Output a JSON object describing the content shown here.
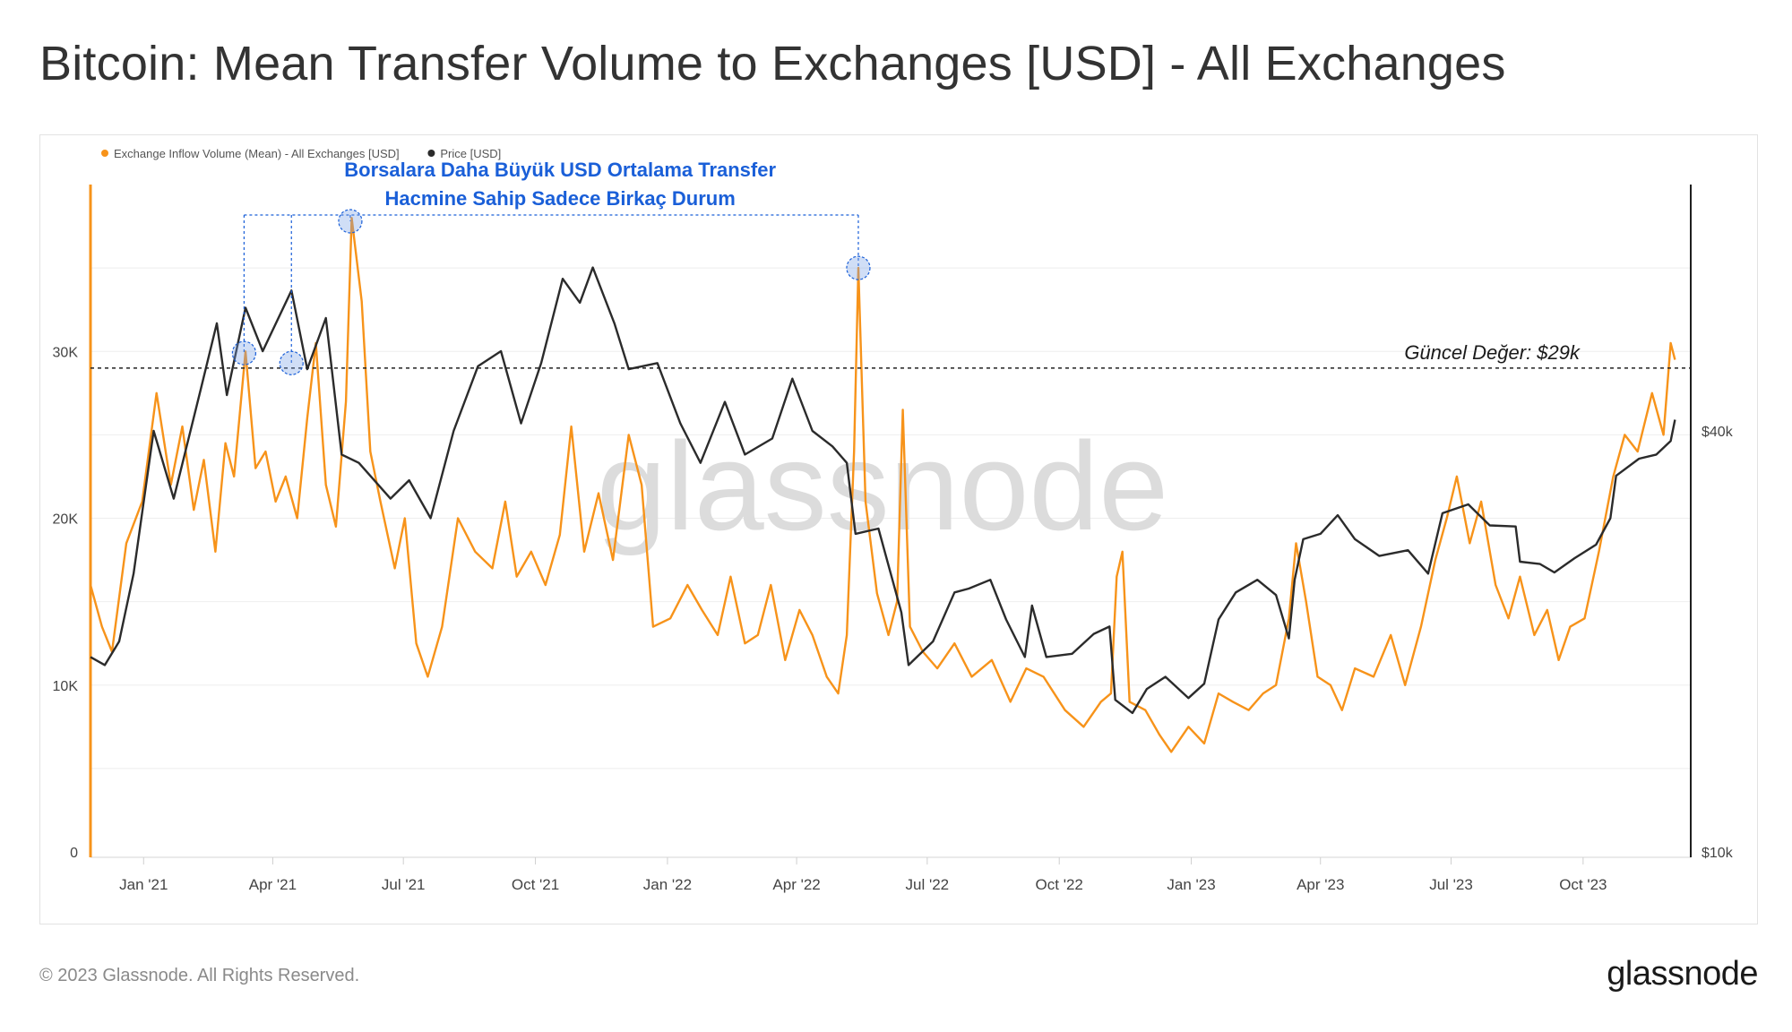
{
  "title": "Bitcoin: Mean Transfer Volume to Exchanges [USD] - All Exchanges",
  "footer": {
    "copyright": "© 2023 Glassnode. All Rights Reserved.",
    "logo": "glassnode"
  },
  "watermark": "glassnode",
  "colors": {
    "inflow": "#f7931a",
    "price": "#2b2b2b",
    "annotation": "#1a5fd8",
    "watermark": "#dcdcdc"
  },
  "chart_data": {
    "type": "line",
    "x_range": [
      "2020-11-25",
      "2023-12-15"
    ],
    "x_ticks": [
      {
        "date": "2021-01-01",
        "label": "Jan '21"
      },
      {
        "date": "2021-04-01",
        "label": "Apr '21"
      },
      {
        "date": "2021-07-01",
        "label": "Jul '21"
      },
      {
        "date": "2021-10-01",
        "label": "Oct '21"
      },
      {
        "date": "2022-01-01",
        "label": "Jan '22"
      },
      {
        "date": "2022-04-01",
        "label": "Apr '22"
      },
      {
        "date": "2022-07-01",
        "label": "Jul '22"
      },
      {
        "date": "2022-10-01",
        "label": "Oct '22"
      },
      {
        "date": "2023-01-01",
        "label": "Jan '23"
      },
      {
        "date": "2023-04-01",
        "label": "Apr '23"
      },
      {
        "date": "2023-07-01",
        "label": "Jul '23"
      },
      {
        "date": "2023-10-01",
        "label": "Oct '23"
      }
    ],
    "y_left": {
      "range": [
        0,
        40000
      ],
      "ticks": [
        {
          "value": 0,
          "label": "0"
        },
        {
          "value": 10000,
          "label": "10K"
        },
        {
          "value": 20000,
          "label": "20K"
        },
        {
          "value": 30000,
          "label": "30K"
        }
      ]
    },
    "y_right": {
      "scale": "log",
      "range": [
        10000,
        90000
      ],
      "ticks": [
        {
          "value": 10000,
          "label": "$10k"
        },
        {
          "value": 40000,
          "label": "$40k"
        }
      ]
    },
    "grid": "horizontal",
    "legend_position": "top-left",
    "series": [
      {
        "name": "Exchange Inflow Volume (Mean) - All Exchanges [USD]",
        "axis": "left",
        "points": [
          [
            "2020-11-25",
            16000
          ],
          [
            "2020-12-03",
            13500
          ],
          [
            "2020-12-10",
            12000
          ],
          [
            "2020-12-20",
            18500
          ],
          [
            "2020-12-31",
            21000
          ],
          [
            "2021-01-10",
            27500
          ],
          [
            "2021-01-20",
            22000
          ],
          [
            "2021-01-28",
            25500
          ],
          [
            "2021-02-05",
            20500
          ],
          [
            "2021-02-12",
            23500
          ],
          [
            "2021-02-20",
            18000
          ],
          [
            "2021-02-27",
            24500
          ],
          [
            "2021-03-05",
            22500
          ],
          [
            "2021-03-13",
            30000
          ],
          [
            "2021-03-20",
            23000
          ],
          [
            "2021-03-27",
            24000
          ],
          [
            "2021-04-03",
            21000
          ],
          [
            "2021-04-10",
            22500
          ],
          [
            "2021-04-18",
            20000
          ],
          [
            "2021-04-25",
            26000
          ],
          [
            "2021-05-01",
            30500
          ],
          [
            "2021-05-08",
            22000
          ],
          [
            "2021-05-15",
            19500
          ],
          [
            "2021-05-22",
            27000
          ],
          [
            "2021-05-26",
            38000
          ],
          [
            "2021-06-02",
            33000
          ],
          [
            "2021-06-08",
            24000
          ],
          [
            "2021-06-15",
            21000
          ],
          [
            "2021-06-25",
            17000
          ],
          [
            "2021-07-02",
            20000
          ],
          [
            "2021-07-10",
            12500
          ],
          [
            "2021-07-18",
            10500
          ],
          [
            "2021-07-28",
            13500
          ],
          [
            "2021-08-08",
            20000
          ],
          [
            "2021-08-20",
            18000
          ],
          [
            "2021-09-01",
            17000
          ],
          [
            "2021-09-10",
            21000
          ],
          [
            "2021-09-18",
            16500
          ],
          [
            "2021-09-28",
            18000
          ],
          [
            "2021-10-08",
            16000
          ],
          [
            "2021-10-18",
            19000
          ],
          [
            "2021-10-26",
            25500
          ],
          [
            "2021-11-04",
            18000
          ],
          [
            "2021-11-14",
            21500
          ],
          [
            "2021-11-24",
            17500
          ],
          [
            "2021-12-05",
            25000
          ],
          [
            "2021-12-14",
            22000
          ],
          [
            "2021-12-22",
            13500
          ],
          [
            "2022-01-03",
            14000
          ],
          [
            "2022-01-15",
            16000
          ],
          [
            "2022-01-25",
            14500
          ],
          [
            "2022-02-05",
            13000
          ],
          [
            "2022-02-14",
            16500
          ],
          [
            "2022-02-24",
            12500
          ],
          [
            "2022-03-05",
            13000
          ],
          [
            "2022-03-14",
            16000
          ],
          [
            "2022-03-24",
            11500
          ],
          [
            "2022-04-03",
            14500
          ],
          [
            "2022-04-12",
            13000
          ],
          [
            "2022-04-22",
            10500
          ],
          [
            "2022-04-30",
            9500
          ],
          [
            "2022-05-06",
            13000
          ],
          [
            "2022-05-11",
            24000
          ],
          [
            "2022-05-14",
            35000
          ],
          [
            "2022-05-19",
            21000
          ],
          [
            "2022-05-27",
            15500
          ],
          [
            "2022-06-04",
            13000
          ],
          [
            "2022-06-10",
            15000
          ],
          [
            "2022-06-14",
            26500
          ],
          [
            "2022-06-19",
            13500
          ],
          [
            "2022-06-28",
            12000
          ],
          [
            "2022-07-08",
            11000
          ],
          [
            "2022-07-20",
            12500
          ],
          [
            "2022-08-01",
            10500
          ],
          [
            "2022-08-15",
            11500
          ],
          [
            "2022-08-28",
            9000
          ],
          [
            "2022-09-08",
            11000
          ],
          [
            "2022-09-20",
            10500
          ],
          [
            "2022-10-05",
            8500
          ],
          [
            "2022-10-18",
            7500
          ],
          [
            "2022-10-30",
            9000
          ],
          [
            "2022-11-06",
            9500
          ],
          [
            "2022-11-10",
            16500
          ],
          [
            "2022-11-14",
            18000
          ],
          [
            "2022-11-19",
            9000
          ],
          [
            "2022-11-30",
            8500
          ],
          [
            "2022-12-10",
            7000
          ],
          [
            "2022-12-18",
            6000
          ],
          [
            "2022-12-30",
            7500
          ],
          [
            "2023-01-10",
            6500
          ],
          [
            "2023-01-20",
            9500
          ],
          [
            "2023-01-30",
            9000
          ],
          [
            "2023-02-10",
            8500
          ],
          [
            "2023-02-20",
            9500
          ],
          [
            "2023-03-01",
            10000
          ],
          [
            "2023-03-10",
            14000
          ],
          [
            "2023-03-15",
            18500
          ],
          [
            "2023-03-22",
            15000
          ],
          [
            "2023-03-30",
            10500
          ],
          [
            "2023-04-08",
            10000
          ],
          [
            "2023-04-16",
            8500
          ],
          [
            "2023-04-25",
            11000
          ],
          [
            "2023-05-08",
            10500
          ],
          [
            "2023-05-20",
            13000
          ],
          [
            "2023-05-30",
            10000
          ],
          [
            "2023-06-10",
            13500
          ],
          [
            "2023-06-20",
            17500
          ],
          [
            "2023-06-28",
            20000
          ],
          [
            "2023-07-05",
            22500
          ],
          [
            "2023-07-14",
            18500
          ],
          [
            "2023-07-22",
            21000
          ],
          [
            "2023-08-01",
            16000
          ],
          [
            "2023-08-10",
            14000
          ],
          [
            "2023-08-18",
            16500
          ],
          [
            "2023-08-28",
            13000
          ],
          [
            "2023-09-06",
            14500
          ],
          [
            "2023-09-14",
            11500
          ],
          [
            "2023-09-22",
            13500
          ],
          [
            "2023-10-02",
            14000
          ],
          [
            "2023-10-12",
            18000
          ],
          [
            "2023-10-22",
            22500
          ],
          [
            "2023-10-30",
            25000
          ],
          [
            "2023-11-08",
            24000
          ],
          [
            "2023-11-18",
            27500
          ],
          [
            "2023-11-26",
            25000
          ],
          [
            "2023-12-01",
            30500
          ],
          [
            "2023-12-04",
            29500
          ]
        ]
      },
      {
        "name": "Price [USD]",
        "axis": "right",
        "points": [
          [
            "2020-11-25",
            19000
          ],
          [
            "2020-12-05",
            18500
          ],
          [
            "2020-12-15",
            20000
          ],
          [
            "2020-12-25",
            25000
          ],
          [
            "2021-01-08",
            40000
          ],
          [
            "2021-01-22",
            32000
          ],
          [
            "2021-02-10",
            46000
          ],
          [
            "2021-02-21",
            57000
          ],
          [
            "2021-02-28",
            45000
          ],
          [
            "2021-03-13",
            60000
          ],
          [
            "2021-03-25",
            52000
          ],
          [
            "2021-04-14",
            63500
          ],
          [
            "2021-04-25",
            49000
          ],
          [
            "2021-05-08",
            58000
          ],
          [
            "2021-05-19",
            37000
          ],
          [
            "2021-05-31",
            36000
          ],
          [
            "2021-06-22",
            32000
          ],
          [
            "2021-07-05",
            34000
          ],
          [
            "2021-07-20",
            30000
          ],
          [
            "2021-08-05",
            40000
          ],
          [
            "2021-08-22",
            49500
          ],
          [
            "2021-09-07",
            52000
          ],
          [
            "2021-09-21",
            41000
          ],
          [
            "2021-10-05",
            50000
          ],
          [
            "2021-10-20",
            66000
          ],
          [
            "2021-11-01",
            61000
          ],
          [
            "2021-11-10",
            68500
          ],
          [
            "2021-11-25",
            57000
          ],
          [
            "2021-12-05",
            49000
          ],
          [
            "2021-12-25",
            50000
          ],
          [
            "2022-01-10",
            41000
          ],
          [
            "2022-01-24",
            36000
          ],
          [
            "2022-02-10",
            44000
          ],
          [
            "2022-02-24",
            37000
          ],
          [
            "2022-03-15",
            39000
          ],
          [
            "2022-03-29",
            47500
          ],
          [
            "2022-04-12",
            40000
          ],
          [
            "2022-04-26",
            38000
          ],
          [
            "2022-05-06",
            36000
          ],
          [
            "2022-05-12",
            28500
          ],
          [
            "2022-05-28",
            29000
          ],
          [
            "2022-06-13",
            22000
          ],
          [
            "2022-06-18",
            18500
          ],
          [
            "2022-07-05",
            20000
          ],
          [
            "2022-07-20",
            23500
          ],
          [
            "2022-07-30",
            23800
          ],
          [
            "2022-08-14",
            24500
          ],
          [
            "2022-08-25",
            21500
          ],
          [
            "2022-09-07",
            19000
          ],
          [
            "2022-09-12",
            22500
          ],
          [
            "2022-09-22",
            19000
          ],
          [
            "2022-10-10",
            19200
          ],
          [
            "2022-10-25",
            20500
          ],
          [
            "2022-11-05",
            21000
          ],
          [
            "2022-11-09",
            16500
          ],
          [
            "2022-11-21",
            15800
          ],
          [
            "2022-12-01",
            17100
          ],
          [
            "2022-12-14",
            17800
          ],
          [
            "2022-12-30",
            16600
          ],
          [
            "2023-01-10",
            17400
          ],
          [
            "2023-01-20",
            21500
          ],
          [
            "2023-02-01",
            23500
          ],
          [
            "2023-02-16",
            24500
          ],
          [
            "2023-03-01",
            23300
          ],
          [
            "2023-03-10",
            20200
          ],
          [
            "2023-03-14",
            24500
          ],
          [
            "2023-03-20",
            28000
          ],
          [
            "2023-04-01",
            28500
          ],
          [
            "2023-04-13",
            30300
          ],
          [
            "2023-04-25",
            28000
          ],
          [
            "2023-05-12",
            26500
          ],
          [
            "2023-06-01",
            27000
          ],
          [
            "2023-06-15",
            25000
          ],
          [
            "2023-06-25",
            30500
          ],
          [
            "2023-07-13",
            31400
          ],
          [
            "2023-07-28",
            29300
          ],
          [
            "2023-08-15",
            29200
          ],
          [
            "2023-08-18",
            26000
          ],
          [
            "2023-09-01",
            25800
          ],
          [
            "2023-09-11",
            25100
          ],
          [
            "2023-09-25",
            26300
          ],
          [
            "2023-10-10",
            27500
          ],
          [
            "2023-10-20",
            30000
          ],
          [
            "2023-10-24",
            34500
          ],
          [
            "2023-11-09",
            36500
          ],
          [
            "2023-11-21",
            37000
          ],
          [
            "2023-12-01",
            38700
          ],
          [
            "2023-12-04",
            41500
          ]
        ]
      }
    ],
    "reference_line": {
      "value": 29000,
      "axis": "left",
      "style": "dashed",
      "label": "Güncel Değer: $29k"
    },
    "annotation": {
      "text_line1": "Borsalara Daha Büyük USD Ortalama Transfer",
      "text_line2": "Hacmine Sahip Sadece Birkaç Durum",
      "highlighted_points": [
        [
          "2021-03-12",
          29900
        ],
        [
          "2021-04-14",
          29300
        ],
        [
          "2021-05-25",
          37800
        ],
        [
          "2022-05-14",
          35000
        ]
      ]
    }
  }
}
